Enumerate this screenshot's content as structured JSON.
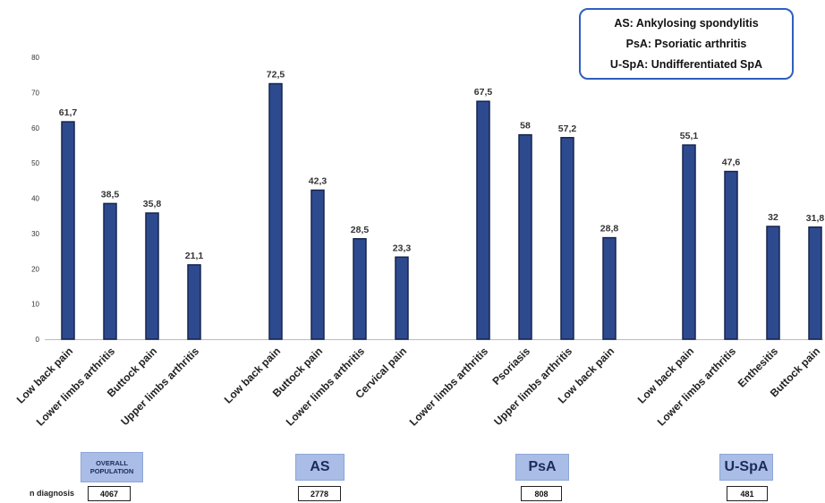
{
  "legend": [
    "AS: Ankylosing spondylitis",
    "PsA: Psoriatic arthritis",
    "U-SpA: Undifferentiated SpA"
  ],
  "groups": [
    {
      "label": "OVERALL POPULATION",
      "n": "4067"
    },
    {
      "label": "AS",
      "n": "2778"
    },
    {
      "label": "PsA",
      "n": "808"
    },
    {
      "label": "U-SpA",
      "n": "481"
    }
  ],
  "n_label": "n diagnosis",
  "colors": {
    "bar": "#2e4a8f",
    "bar_stroke": "#16244d",
    "badge": "#a9bde6",
    "legend_border": "#2f5fbf"
  },
  "chart_data": {
    "type": "bar",
    "ylim": [
      0,
      80
    ],
    "yticks": [
      0,
      10,
      20,
      30,
      40,
      50,
      60,
      70,
      80
    ],
    "grid": false,
    "categories": [
      "Low back pain",
      "Lower limbs arthritis",
      "Buttock pain",
      "Upper limbs arthritis",
      "Low back pain",
      "Buttock pain",
      "Lower limbs arthritis",
      "Cervical pain",
      "Lower limbs arthritis",
      "Psoriasis",
      "Upper limbs arthritis",
      "Low back pain",
      "Low back pain",
      "Lower limbs arthritis",
      "Enthesitis",
      "Buttock pain"
    ],
    "values": [
      61.7,
      38.5,
      35.8,
      21.1,
      72.5,
      42.3,
      28.5,
      23.3,
      67.5,
      58,
      57.2,
      28.8,
      55.1,
      47.6,
      32,
      31.8
    ],
    "value_labels": [
      "61,7",
      "38,5",
      "35,8",
      "21,1",
      "72,5",
      "42,3",
      "28,5",
      "23,3",
      "67,5",
      "58",
      "57,2",
      "28,8",
      "55,1",
      "47,6",
      "32",
      "31,8"
    ],
    "group_index": [
      0,
      0,
      0,
      0,
      1,
      1,
      1,
      1,
      2,
      2,
      2,
      2,
      3,
      3,
      3,
      3
    ]
  }
}
